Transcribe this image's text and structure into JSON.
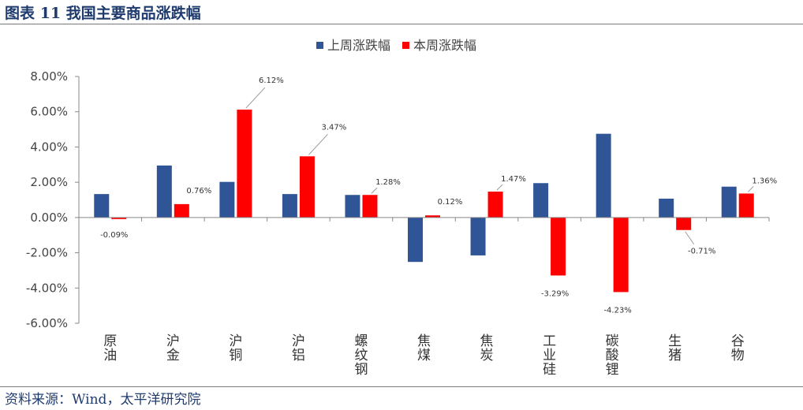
{
  "figure_title": "图表 11 我国主要商品涨跌幅",
  "source": "资料来源：Wind，太平洋研究院",
  "chart_data": {
    "type": "bar",
    "title": "",
    "xlabel": "",
    "ylabel": "",
    "ylim": [
      -6,
      8
    ],
    "yticks": [
      8,
      6,
      4,
      2,
      0,
      -2,
      -4,
      -6
    ],
    "ytick_labels": [
      "8.00%",
      "6.00%",
      "4.00%",
      "2.00%",
      "0.00%",
      "-2.00%",
      "-4.00%",
      "-6.00%"
    ],
    "categories": [
      "原油",
      "沪金",
      "沪铜",
      "沪铝",
      "螺纹钢",
      "焦煤",
      "焦炭",
      "工业硅",
      "碳酸锂",
      "生猪",
      "谷物"
    ],
    "category_lines": [
      [
        "原",
        "油"
      ],
      [
        "沪",
        "金"
      ],
      [
        "沪",
        "铜"
      ],
      [
        "沪",
        "铝"
      ],
      [
        "螺",
        "纹",
        "钢"
      ],
      [
        "焦",
        "煤"
      ],
      [
        "焦",
        "炭"
      ],
      [
        "工",
        "业",
        "硅"
      ],
      [
        "碳",
        "酸",
        "锂"
      ],
      [
        "生",
        "猪"
      ],
      [
        "谷",
        "物"
      ]
    ],
    "series": [
      {
        "name": "上周涨跌幅",
        "color": "#2f5597",
        "values": [
          1.33,
          2.95,
          2.02,
          1.33,
          1.28,
          -2.52,
          -2.15,
          1.95,
          4.75,
          1.07,
          1.75
        ]
      },
      {
        "name": "本周涨跌幅",
        "color": "#ff0000",
        "values": [
          -0.09,
          0.76,
          6.12,
          3.47,
          1.28,
          0.12,
          1.47,
          -3.29,
          -4.23,
          -0.71,
          1.36
        ],
        "data_labels": [
          "-0.09%",
          "0.76%",
          "6.12%",
          "3.47%",
          "1.28%",
          "0.12%",
          "1.47%",
          "-3.29%",
          "-4.23%",
          "-0.71%",
          "1.36%"
        ]
      }
    ],
    "legend_position": "top-center",
    "grid": false
  }
}
